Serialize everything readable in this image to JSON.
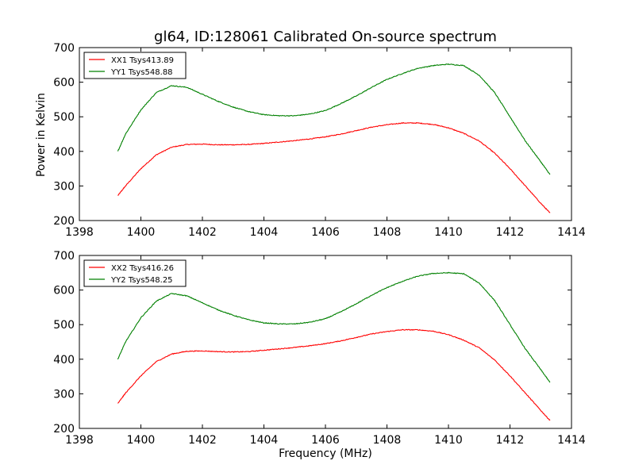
{
  "figure": {
    "title": "gl64, ID:128061 Calibrated On-source spectrum",
    "ylabel": "Power in Kelvin",
    "xlabel": "Frequency (MHz)"
  },
  "chart_data": [
    {
      "type": "line",
      "xlim": [
        1398,
        1414
      ],
      "ylim": [
        200,
        700
      ],
      "x_ticks": [
        "1398",
        "1400",
        "1402",
        "1404",
        "1406",
        "1408",
        "1410",
        "1412",
        "1414"
      ],
      "y_ticks": [
        "200",
        "300",
        "400",
        "500",
        "600",
        "700"
      ],
      "legend_position": "top-left",
      "grid": false,
      "x": [
        1399.25,
        1399.5,
        1400.0,
        1400.5,
        1401.0,
        1401.5,
        1402.0,
        1402.5,
        1403.0,
        1403.5,
        1404.0,
        1404.5,
        1405.0,
        1405.5,
        1406.0,
        1406.5,
        1407.0,
        1407.5,
        1408.0,
        1408.5,
        1409.0,
        1409.5,
        1410.0,
        1410.5,
        1411.0,
        1411.5,
        1412.0,
        1412.5,
        1413.0,
        1413.3
      ],
      "series": [
        {
          "name": "XX1 Tsys413.89",
          "color": "#ff0000",
          "values": [
            272,
            300,
            350,
            390,
            412,
            420,
            421,
            419,
            419,
            420,
            423,
            427,
            431,
            436,
            442,
            450,
            460,
            470,
            477,
            482,
            482,
            478,
            468,
            452,
            430,
            395,
            350,
            300,
            250,
            222
          ]
        },
        {
          "name": "YY1 Tsys548.88",
          "color": "#008000",
          "values": [
            400,
            450,
            520,
            570,
            590,
            585,
            565,
            545,
            528,
            515,
            506,
            503,
            503,
            508,
            518,
            538,
            560,
            585,
            608,
            625,
            640,
            648,
            652,
            648,
            620,
            570,
            500,
            430,
            370,
            333
          ]
        }
      ]
    },
    {
      "type": "line",
      "xlim": [
        1398,
        1414
      ],
      "ylim": [
        200,
        700
      ],
      "x_ticks": [
        "1398",
        "1400",
        "1402",
        "1404",
        "1406",
        "1408",
        "1410",
        "1412",
        "1414"
      ],
      "y_ticks": [
        "200",
        "300",
        "400",
        "500",
        "600",
        "700"
      ],
      "legend_position": "top-left",
      "grid": false,
      "x": [
        1399.25,
        1399.5,
        1400.0,
        1400.5,
        1401.0,
        1401.5,
        1402.0,
        1402.5,
        1403.0,
        1403.5,
        1404.0,
        1404.5,
        1405.0,
        1405.5,
        1406.0,
        1406.5,
        1407.0,
        1407.5,
        1408.0,
        1408.5,
        1409.0,
        1409.5,
        1410.0,
        1410.5,
        1411.0,
        1411.5,
        1412.0,
        1412.5,
        1413.0,
        1413.3
      ],
      "series": [
        {
          "name": "XX2 Tsys416.26",
          "color": "#ff0000",
          "values": [
            272,
            302,
            352,
            393,
            415,
            423,
            424,
            422,
            421,
            422,
            426,
            430,
            434,
            439,
            445,
            453,
            463,
            473,
            480,
            485,
            485,
            481,
            471,
            455,
            433,
            398,
            352,
            302,
            252,
            223
          ]
        },
        {
          "name": "YY2 Tsys548.25",
          "color": "#008000",
          "values": [
            400,
            450,
            520,
            568,
            590,
            583,
            563,
            543,
            527,
            514,
            505,
            502,
            502,
            507,
            517,
            537,
            560,
            585,
            607,
            625,
            640,
            648,
            650,
            647,
            620,
            570,
            500,
            430,
            370,
            333
          ]
        }
      ]
    }
  ]
}
